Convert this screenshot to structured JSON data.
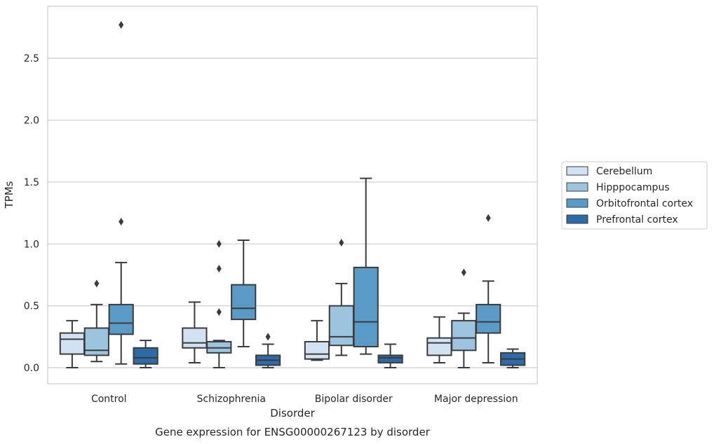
{
  "chart_data": {
    "type": "box",
    "title": "",
    "caption": "Gene expression for ENSG00000267123 by disorder",
    "xlabel": "Disorder",
    "ylabel": "TPMs",
    "ylim": [
      -0.13,
      2.92
    ],
    "yticks": [
      0.0,
      0.5,
      1.0,
      1.5,
      2.0,
      2.5
    ],
    "ytick_labels": [
      "0.0",
      "0.5",
      "1.0",
      "1.5",
      "2.0",
      "2.5"
    ],
    "categories": [
      "Control",
      "Schizophrenia",
      "Bipolar disorder",
      "Major depression"
    ],
    "grid": "horizontal",
    "legend_position": "right",
    "series": [
      {
        "name": "Cerebellum",
        "color": "#d1e2f2",
        "boxes": [
          {
            "whislo": 0.0,
            "q1": 0.11,
            "med": 0.23,
            "q3": 0.28,
            "whishi": 0.38,
            "fliers": []
          },
          {
            "whislo": 0.04,
            "q1": 0.16,
            "med": 0.2,
            "q3": 0.32,
            "whishi": 0.53,
            "fliers": []
          },
          {
            "whislo": 0.06,
            "q1": 0.07,
            "med": 0.11,
            "q3": 0.21,
            "whishi": 0.38,
            "fliers": []
          },
          {
            "whislo": 0.04,
            "q1": 0.1,
            "med": 0.2,
            "q3": 0.24,
            "whishi": 0.41,
            "fliers": []
          }
        ]
      },
      {
        "name": "Hipppocampus",
        "color": "#9dc4de",
        "boxes": [
          {
            "whislo": 0.05,
            "q1": 0.1,
            "med": 0.14,
            "q3": 0.32,
            "whishi": 0.51,
            "fliers": [
              0.68
            ]
          },
          {
            "whislo": 0.0,
            "q1": 0.12,
            "med": 0.16,
            "q3": 0.21,
            "whishi": 0.22,
            "fliers": [
              0.45,
              0.8,
              1.0
            ]
          },
          {
            "whislo": 0.1,
            "q1": 0.18,
            "med": 0.25,
            "q3": 0.5,
            "whishi": 0.68,
            "fliers": [
              1.01
            ]
          },
          {
            "whislo": 0.0,
            "q1": 0.14,
            "med": 0.24,
            "q3": 0.38,
            "whishi": 0.44,
            "fliers": [
              0.77
            ]
          }
        ]
      },
      {
        "name": "Orbitofrontal cortex",
        "color": "#5a9ac7",
        "boxes": [
          {
            "whislo": 0.03,
            "q1": 0.27,
            "med": 0.36,
            "q3": 0.51,
            "whishi": 0.85,
            "fliers": [
              1.18,
              2.77
            ]
          },
          {
            "whislo": 0.17,
            "q1": 0.39,
            "med": 0.48,
            "q3": 0.67,
            "whishi": 1.03,
            "fliers": []
          },
          {
            "whislo": 0.11,
            "q1": 0.17,
            "med": 0.37,
            "q3": 0.81,
            "whishi": 1.53,
            "fliers": []
          },
          {
            "whislo": 0.04,
            "q1": 0.28,
            "med": 0.37,
            "q3": 0.51,
            "whishi": 0.7,
            "fliers": [
              1.21
            ]
          }
        ]
      },
      {
        "name": "Prefrontal cortex",
        "color": "#2d6ba8",
        "boxes": [
          {
            "whislo": 0.0,
            "q1": 0.03,
            "med": 0.08,
            "q3": 0.16,
            "whishi": 0.22,
            "fliers": []
          },
          {
            "whislo": 0.0,
            "q1": 0.02,
            "med": 0.06,
            "q3": 0.1,
            "whishi": 0.19,
            "fliers": [
              0.25
            ]
          },
          {
            "whislo": 0.0,
            "q1": 0.04,
            "med": 0.08,
            "q3": 0.1,
            "whishi": 0.19,
            "fliers": []
          },
          {
            "whislo": 0.0,
            "q1": 0.02,
            "med": 0.07,
            "q3": 0.12,
            "whishi": 0.15,
            "fliers": []
          }
        ]
      }
    ]
  },
  "colors": {
    "grid": "#cccccc",
    "frame": "#cccccc",
    "box_edge": "#3b3b3b",
    "legend_border": "#cccccc"
  }
}
